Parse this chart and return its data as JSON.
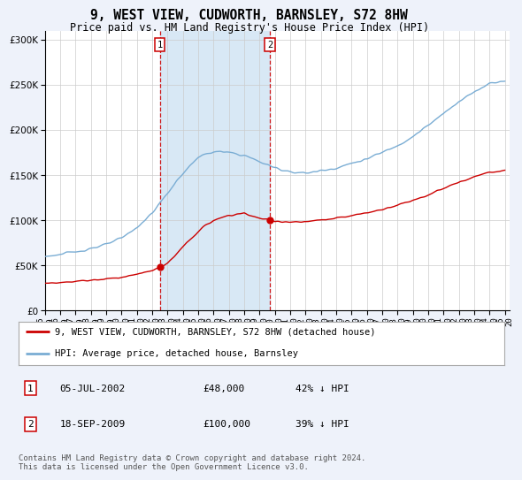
{
  "title": "9, WEST VIEW, CUDWORTH, BARNSLEY, S72 8HW",
  "subtitle": "Price paid vs. HM Land Registry's House Price Index (HPI)",
  "title_fontsize": 10.5,
  "subtitle_fontsize": 8.5,
  "bg_color": "#eef2fa",
  "plot_bg_color": "#ffffff",
  "hpi_color": "#7aadd4",
  "price_color": "#cc0000",
  "shade_color": "#d8e8f5",
  "legend_line1": "9, WEST VIEW, CUDWORTH, BARNSLEY, S72 8HW (detached house)",
  "legend_line2": "HPI: Average price, detached house, Barnsley",
  "table_row1": [
    "1",
    "05-JUL-2002",
    "£48,000",
    "42% ↓ HPI"
  ],
  "table_row2": [
    "2",
    "18-SEP-2009",
    "£100,000",
    "39% ↓ HPI"
  ],
  "footer": "Contains HM Land Registry data © Crown copyright and database right 2024.\nThis data is licensed under the Open Government Licence v3.0.",
  "ylim": [
    0,
    310000
  ],
  "yticks": [
    0,
    50000,
    100000,
    150000,
    200000,
    250000,
    300000
  ],
  "sale1_year": 2002.54,
  "sale1_price": 48000,
  "sale2_year": 2009.72,
  "sale2_price": 100000,
  "start_year": 1995,
  "end_year": 2025
}
